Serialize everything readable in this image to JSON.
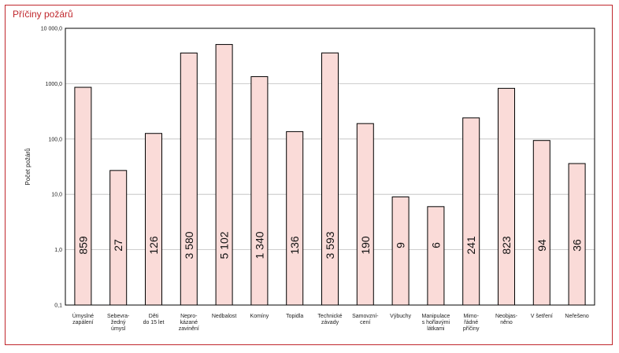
{
  "chart_data": {
    "type": "bar",
    "title": "Příčiny požárů",
    "ylabel": "Počet požárů",
    "xlabel": "",
    "yscale": "log",
    "ylim": [
      0.1,
      10000
    ],
    "yticks": [
      "0,1",
      "1,0",
      "10,0",
      "100,0",
      "1000,0",
      "10 000,0"
    ],
    "grid": true,
    "categories": [
      [
        "Úmyslné",
        "zapálení"
      ],
      [
        "Sebevra-",
        "žedný",
        "úmysl"
      ],
      [
        "Děti",
        "do 15 let"
      ],
      [
        "Nepro-",
        "kázané",
        "zavinění"
      ],
      [
        "Nedbalost"
      ],
      [
        "Komíny"
      ],
      [
        "Topidla"
      ],
      [
        "Technické",
        "závady"
      ],
      [
        "Samovzní-",
        "cení"
      ],
      [
        "Výbuchy"
      ],
      [
        "Manipulace",
        "s hořlavými",
        "látkami"
      ],
      [
        "Mimo-",
        "řádné",
        "příčiny"
      ],
      [
        "Neobjas-",
        "něno"
      ],
      [
        "V šetření"
      ],
      [
        "Neřešeno"
      ]
    ],
    "values": [
      859,
      27,
      126,
      3580,
      5102,
      1340,
      136,
      3593,
      190,
      9,
      6,
      241,
      823,
      94,
      36
    ],
    "value_labels": [
      "859",
      "27",
      "126",
      "3 580",
      "5 102",
      "1 340",
      "136",
      "3 593",
      "190",
      "9",
      "6",
      "241",
      "823",
      "94",
      "36"
    ],
    "bar_color": "#fadbd8",
    "bar_stroke": "#000000",
    "title_color": "#c0272d"
  }
}
